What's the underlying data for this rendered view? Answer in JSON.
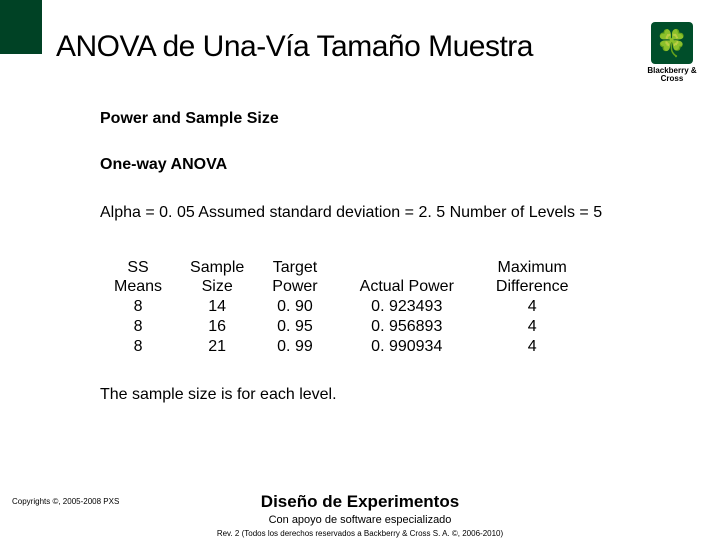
{
  "logo": {
    "brand": "Blackberry & Cross",
    "color": "#004e2a",
    "icon": "🍀"
  },
  "title": "ANOVA de Una-Vía Tamaño Muestra",
  "section1": "Power and Sample Size",
  "section2": "One-way ANOVA",
  "params_line": "Alpha = 0. 05  Assumed standard deviation = 2. 5  Number of Levels = 5",
  "table": {
    "headers": {
      "ss_means": "SS\nMeans",
      "sample_size": "Sample\nSize",
      "target_power": "Target\nPower",
      "actual_power": "Actual Power",
      "max_diff": "Maximum\nDifference"
    },
    "rows": [
      {
        "ss": "8",
        "size": "14",
        "target": "0. 90",
        "actual": "0. 923493",
        "max": "4"
      },
      {
        "ss": "8",
        "size": "16",
        "target": "0. 95",
        "actual": "0. 956893",
        "max": "4"
      },
      {
        "ss": "8",
        "size": "21",
        "target": "0. 99",
        "actual": "0. 990934",
        "max": "4"
      }
    ]
  },
  "note": "The sample size is for each level. ",
  "footer": {
    "copyright": "Copyrights ©, 2005-2008 PXS",
    "main": "Diseño de Experimentos",
    "sub": "Con apoyo de software especializado",
    "rev": "Rev. 2 (Todos los derechos reservados a Backberry & Cross S. A. ©, 2006-2010)"
  }
}
